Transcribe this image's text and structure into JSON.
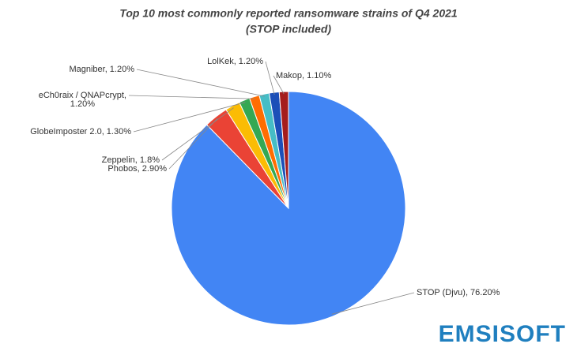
{
  "chart_data": {
    "type": "pie",
    "title": "Top 10 most commonly reported ransomware strains of Q4 2021",
    "subtitle": "(STOP included)",
    "categories": [
      "STOP (Djvu), 76.20%",
      "Phobos, 2.90%",
      "Zeppelin, 1.8%",
      "GlobeImposter 2.0, 1.30%",
      "eCh0raix / QNAPcrypt, 1.20%",
      "Magniber, 1.20%",
      "LolKek, 1.20%",
      "Makop, 1.10%"
    ],
    "values": [
      76.2,
      2.9,
      1.8,
      1.3,
      1.2,
      1.2,
      1.2,
      1.1
    ],
    "colors": [
      "#4285f4",
      "#ea4335",
      "#fbbc04",
      "#34a853",
      "#ff6d01",
      "#46bdc6",
      "#1c4fb8",
      "#a51d1d"
    ],
    "logo": "EMSISOFT"
  }
}
